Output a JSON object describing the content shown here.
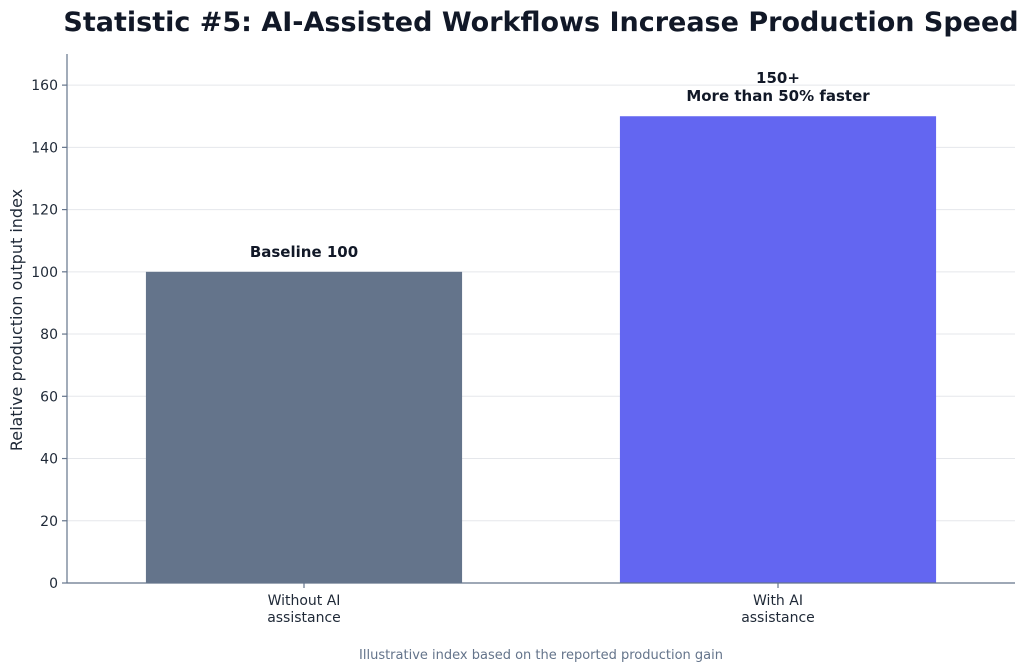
{
  "chart_data": {
    "type": "bar",
    "title": "Statistic #5: AI-Assisted Workflows Increase Production Speed",
    "ylabel": "Relative production output index",
    "xlabel": "",
    "ylim": [
      0,
      170
    ],
    "yticks": [
      0,
      20,
      40,
      60,
      80,
      100,
      120,
      140,
      160
    ],
    "grid": true,
    "categories": [
      [
        "Without AI",
        "assistance"
      ],
      [
        "With AI",
        "assistance"
      ]
    ],
    "values": [
      100,
      150
    ],
    "colors": [
      "#64748b",
      "#6366f1"
    ],
    "data_labels": [
      [
        "Baseline 100"
      ],
      [
        "150+",
        "More than 50% faster"
      ]
    ],
    "footnote": "Illustrative index based on the reported production gain"
  }
}
